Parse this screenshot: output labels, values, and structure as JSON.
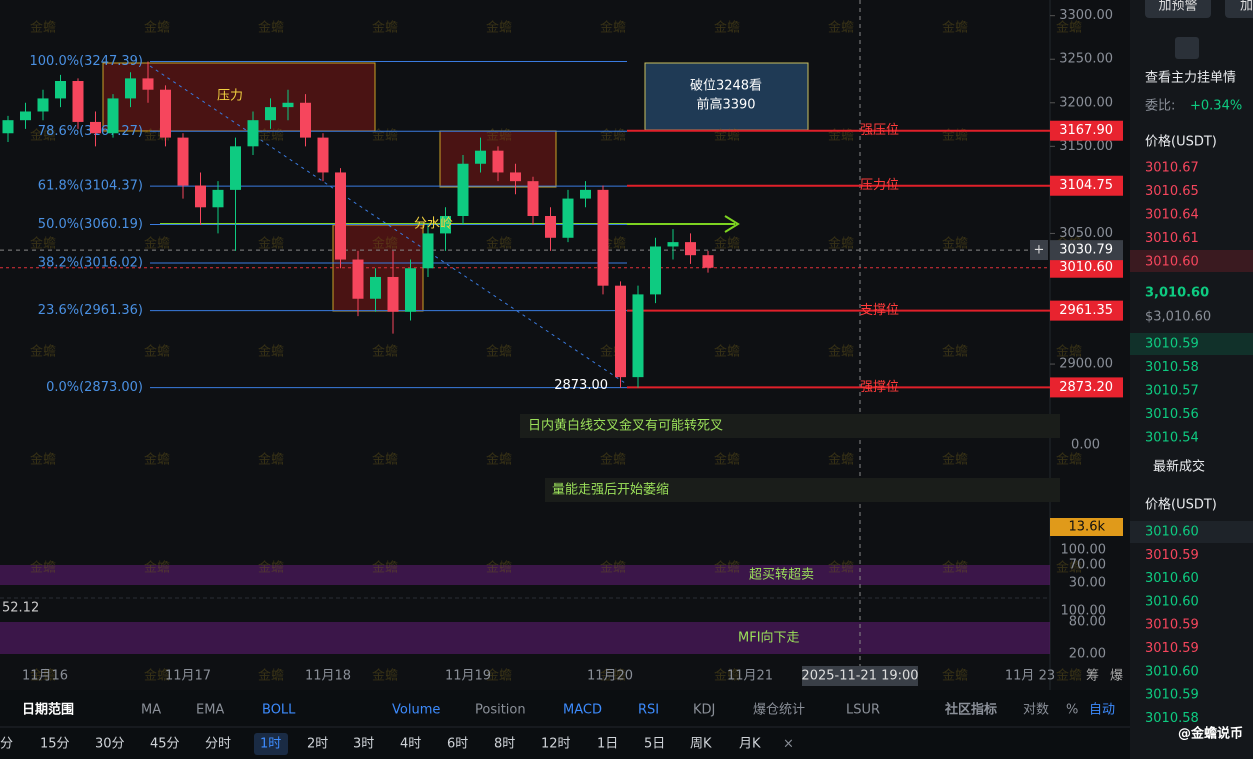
{
  "chart_data": {
    "type": "candlestick",
    "ylim": [
      2853,
      3318
    ],
    "yticks": [
      {
        "value": 3300,
        "label": "3300.00"
      },
      {
        "value": 3250,
        "label": "3250.00"
      },
      {
        "value": 3200,
        "label": "3200.00"
      },
      {
        "value": 3150,
        "label": "3150.00"
      },
      {
        "value": 3050,
        "label": "3050.00"
      },
      {
        "value": 2900,
        "label": "2900.00"
      }
    ],
    "open": [
      3165,
      3180,
      3190,
      3205,
      3225,
      3178,
      3165,
      3205,
      3228,
      3215,
      3160,
      3105,
      3080,
      3100,
      3150,
      3180,
      3195,
      3200,
      3160,
      3120,
      3020,
      2975,
      3000,
      2960,
      3010,
      3050,
      3070,
      3130,
      3145,
      3120,
      3110,
      3070,
      3045,
      3090,
      3100,
      2990,
      2885,
      2980,
      3035,
      3040,
      3025
    ],
    "high": [
      3185,
      3200,
      3215,
      3232,
      3228,
      3190,
      3210,
      3235,
      3247.39,
      3220,
      3165,
      3120,
      3110,
      3160,
      3190,
      3205,
      3215,
      3210,
      3165,
      3125,
      3030,
      3010,
      3030,
      3020,
      3060,
      3080,
      3140,
      3160,
      3150,
      3130,
      3115,
      3080,
      3100,
      3110,
      3105,
      2995,
      2990,
      3045,
      3055,
      3050,
      3030
    ],
    "low": [
      3155,
      3170,
      3180,
      3195,
      3170,
      3150,
      3160,
      3195,
      3200,
      3150,
      3090,
      3060,
      3050,
      3030,
      3140,
      3170,
      3180,
      3150,
      3110,
      3010,
      2955,
      2960,
      2935,
      2950,
      3000,
      3030,
      3060,
      3120,
      3110,
      3095,
      3060,
      3030,
      3040,
      3080,
      2980,
      2873,
      2873,
      2970,
      3020,
      3015,
      3005
    ],
    "close": [
      3180,
      3190,
      3205,
      3225,
      3178,
      3165,
      3205,
      3228,
      3215,
      3160,
      3105,
      3080,
      3100,
      3150,
      3180,
      3195,
      3200,
      3160,
      3120,
      3020,
      2975,
      3000,
      2960,
      3010,
      3050,
      3070,
      3130,
      3145,
      3120,
      3110,
      3070,
      3045,
      3090,
      3100,
      2990,
      2885,
      2980,
      3035,
      3040,
      3025,
      3010.6
    ],
    "up_color": "#0ecb81",
    "down_color": "#f6465d",
    "fib_levels": [
      {
        "value": 3247.39,
        "label": "100.0%(3247.39)"
      },
      {
        "value": 3167.27,
        "label": "78.6%(3167.27)"
      },
      {
        "value": 3104.37,
        "label": "61.8%(3104.37)"
      },
      {
        "value": 3060.19,
        "label": "50.0%(3060.19)"
      },
      {
        "value": 3016.02,
        "label": "38.2%(3016.02)"
      },
      {
        "value": 2961.36,
        "label": "23.6%(2961.36)"
      },
      {
        "value": 2873.0,
        "label": "0.0%(2873.00)"
      }
    ],
    "levels": [
      {
        "value": 3167.9,
        "label": "3167.90",
        "note": "强压位"
      },
      {
        "value": 3104.75,
        "label": "3104.75",
        "note": "压力位"
      },
      {
        "value": 2961.35,
        "label": "2961.35",
        "note": "支撑位"
      },
      {
        "value": 2873.2,
        "label": "2873.20",
        "note": "强撑位"
      }
    ],
    "current_price": {
      "value": 3010.6,
      "label": "3010.60"
    },
    "crosshair_price": {
      "value": 3030.79,
      "label": "3030.79"
    },
    "crosshair_time": "2025-11-21 19:00",
    "low_marker": {
      "value": 2873,
      "label": "2873.00"
    },
    "annotations": {
      "pressure": "压力",
      "watershed": "分水岭",
      "breakout": [
        "破位3248看",
        "前高3390"
      ],
      "macd": "日内黄白线交叉金叉有可能转死叉",
      "volume": "量能走强后开始萎缩",
      "rsi": "超买转超卖",
      "mfi": "MFI向下走"
    },
    "x_labels": [
      "11月16",
      "11月17",
      "11月18",
      "11月19",
      "11月20",
      "11月21",
      "11月 23"
    ],
    "watermark": "金蟾"
  },
  "indicator_axes": {
    "macd": "0.00",
    "volume": "13.6k",
    "rsi": [
      "100.00",
      "70.00",
      "30.00"
    ],
    "mfi": [
      "100.00",
      "80.00",
      "20.00"
    ],
    "mfi_value": "52.12",
    "side_labels": [
      "筹",
      "爆"
    ]
  },
  "order_book": {
    "alert": "加预警",
    "alert2": "加",
    "title": "查看主力挂单情",
    "ratio_label": "委比:",
    "ratio": "+0.34%",
    "price_header": "价格(USDT)",
    "asks": [
      "3010.67",
      "3010.65",
      "3010.64",
      "3010.61",
      "3010.60"
    ],
    "last": "3,010.60",
    "last_usd": "$3,010.60",
    "bids": [
      "3010.59",
      "3010.58",
      "3010.57",
      "3010.56",
      "3010.54"
    ],
    "trades_title": "最新成交",
    "trades_header": "价格(USDT)",
    "trades": [
      {
        "price": "3010.60",
        "color": "#0ecb81"
      },
      {
        "price": "3010.59",
        "color": "#f6465d"
      },
      {
        "price": "3010.60",
        "color": "#0ecb81"
      },
      {
        "price": "3010.60",
        "color": "#0ecb81"
      },
      {
        "price": "3010.59",
        "color": "#f6465d"
      },
      {
        "price": "3010.59",
        "color": "#f6465d"
      },
      {
        "price": "3010.60",
        "color": "#0ecb81"
      },
      {
        "price": "3010.59",
        "color": "#0ecb81"
      },
      {
        "price": "3010.58",
        "color": "#0ecb81"
      }
    ]
  },
  "toolbar": [
    {
      "label": "日期范围",
      "active": false
    },
    {
      "label": "MA",
      "active": false
    },
    {
      "label": "EMA",
      "active": false
    },
    {
      "label": "BOLL",
      "active": true
    },
    {
      "label": "Volume",
      "active": true
    },
    {
      "label": "Position",
      "active": false
    },
    {
      "label": "MACD",
      "active": true
    },
    {
      "label": "RSI",
      "active": true
    },
    {
      "label": "KDJ",
      "active": false
    },
    {
      "label": "爆仓统计",
      "active": false
    },
    {
      "label": "LSUR",
      "active": false
    },
    {
      "label": "社区指标",
      "active": false
    },
    {
      "label": "对数",
      "active": false
    },
    {
      "label": "%",
      "active": false
    },
    {
      "label": "自动",
      "active": true
    }
  ],
  "timeframes": [
    {
      "label": "分",
      "active": false
    },
    {
      "label": "15分",
      "active": false
    },
    {
      "label": "30分",
      "active": false
    },
    {
      "label": "45分",
      "active": false
    },
    {
      "label": "分时",
      "active": false
    },
    {
      "label": "1时",
      "active": true
    },
    {
      "label": "2时",
      "active": false
    },
    {
      "label": "3时",
      "active": false
    },
    {
      "label": "4时",
      "active": false
    },
    {
      "label": "6时",
      "active": false
    },
    {
      "label": "8时",
      "active": false
    },
    {
      "label": "12时",
      "active": false
    },
    {
      "label": "1日",
      "active": false
    },
    {
      "label": "5日",
      "active": false
    },
    {
      "label": "周K",
      "active": false
    },
    {
      "label": "月K",
      "active": false
    }
  ],
  "footer": "@金蟾说币"
}
